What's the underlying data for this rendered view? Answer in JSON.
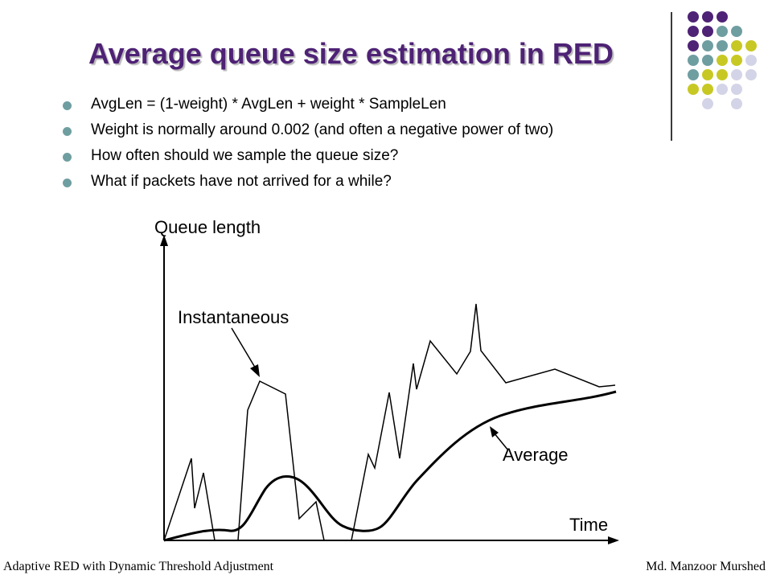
{
  "slide": {
    "title": "Average queue size estimation in RED",
    "bullets": [
      "AvgLen = (1-weight) * AvgLen + weight * SampleLen",
      "Weight is normally around 0.002 (and often a negative power of two)",
      "How often should we sample the queue size?",
      "What if packets have not arrived for a while?"
    ],
    "footer_left": "Adaptive RED with Dynamic Threshold Adjustment",
    "footer_right": "Md. Manzoor Murshed"
  },
  "diagram": {
    "y_axis_label": "Queue length",
    "x_axis_label": "Time",
    "instantaneous_label": "Instantaneous",
    "average_label": "Average"
  },
  "colors": {
    "title": "#4e2275",
    "dot_purple": "#4e2275",
    "dot_teal": "#6f9ea1",
    "dot_olive": "#c8c825",
    "dot_lavender": "#d4d4e8",
    "bullet": "#6f9ea1"
  }
}
